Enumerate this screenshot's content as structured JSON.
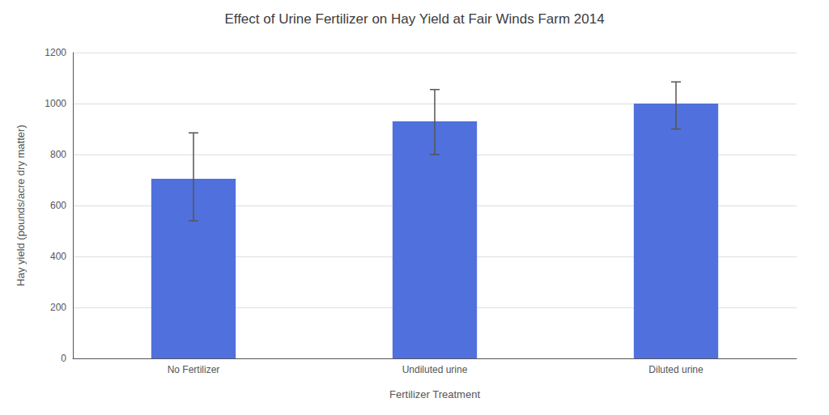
{
  "chart_data": {
    "type": "bar",
    "title": "Effect of Urine Fertilizer on Hay Yield at Fair Winds Farm 2014",
    "xlabel": "Fertilizer Treatment",
    "ylabel": "Hay yield (pounds/acre dry matter)",
    "categories": [
      "No Fertilizer",
      "Undiluted urine",
      "Diluted urine"
    ],
    "values": [
      705,
      930,
      1000
    ],
    "errors_upper": [
      180,
      125,
      85
    ],
    "errors_lower": [
      165,
      130,
      100
    ],
    "ylim": [
      0,
      1200
    ],
    "yticks": [
      0,
      200,
      400,
      600,
      800,
      1000,
      1200
    ],
    "grid": true
  }
}
